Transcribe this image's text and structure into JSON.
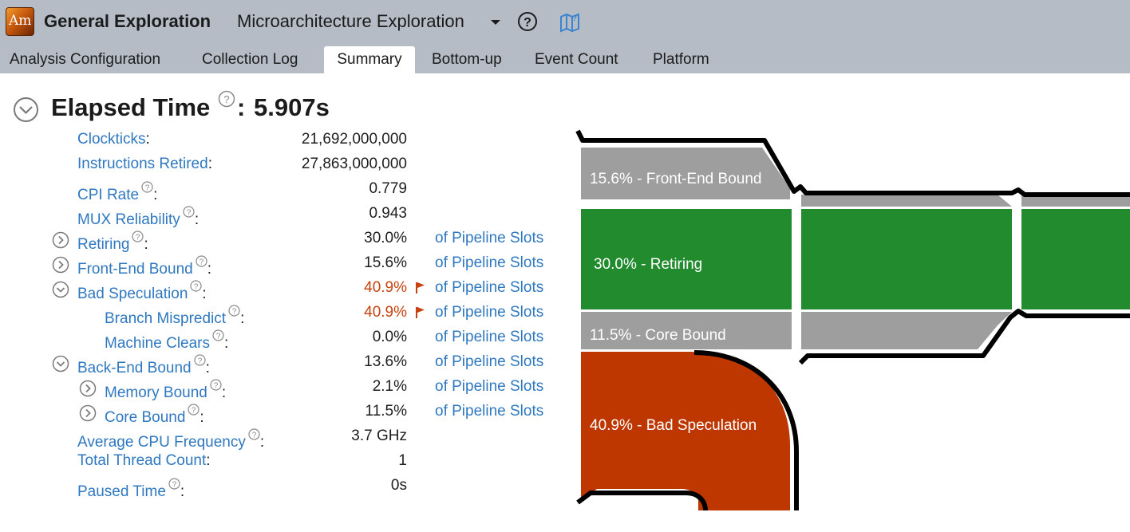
{
  "header": {
    "logo_text": "Am",
    "analysis_type": "General Exploration",
    "analysis_variant": "Microarchitecture Exploration",
    "icons": [
      "dropdown-arrow-icon",
      "help-icon",
      "map-icon"
    ]
  },
  "tabs": [
    {
      "label": "Analysis Configuration",
      "active": false
    },
    {
      "label": "Collection Log",
      "active": false
    },
    {
      "label": "Summary",
      "active": true
    },
    {
      "label": "Bottom-up",
      "active": false
    },
    {
      "label": "Event Count",
      "active": false
    },
    {
      "label": "Platform",
      "active": false
    }
  ],
  "summary": {
    "title": "Elapsed Time",
    "colon": ":",
    "value": "5.907s",
    "metrics": [
      {
        "label": "Clockticks",
        "value": "21,692,000,000",
        "help": false,
        "unit": "",
        "flag": false,
        "toggle": "none",
        "indent": 0
      },
      {
        "label": "Instructions Retired",
        "value": "27,863,000,000",
        "help": false,
        "unit": "",
        "flag": false,
        "toggle": "none",
        "indent": 0
      },
      {
        "label": "CPI Rate",
        "value": "0.779",
        "help": true,
        "unit": "",
        "flag": false,
        "toggle": "none",
        "indent": 0
      },
      {
        "label": "MUX Reliability",
        "value": "0.943",
        "help": true,
        "unit": "",
        "flag": false,
        "toggle": "none",
        "indent": 0
      },
      {
        "label": "Retiring",
        "value": "30.0%",
        "help": true,
        "unit": "of Pipeline Slots",
        "flag": false,
        "toggle": "collapsed",
        "indent": 0
      },
      {
        "label": "Front-End Bound",
        "value": "15.6%",
        "help": true,
        "unit": "of Pipeline Slots",
        "flag": false,
        "toggle": "collapsed",
        "indent": 0
      },
      {
        "label": "Bad Speculation",
        "value": "40.9%",
        "help": true,
        "unit": "of Pipeline Slots",
        "flag": true,
        "toggle": "expanded",
        "indent": 0
      },
      {
        "label": "Branch Mispredict",
        "value": "40.9%",
        "help": true,
        "unit": "of Pipeline Slots",
        "flag": true,
        "toggle": "none",
        "indent": 1
      },
      {
        "label": "Machine Clears",
        "value": "0.0%",
        "help": true,
        "unit": "of Pipeline Slots",
        "flag": false,
        "toggle": "none",
        "indent": 1
      },
      {
        "label": "Back-End Bound",
        "value": "13.6%",
        "help": true,
        "unit": "of Pipeline Slots",
        "flag": false,
        "toggle": "expanded",
        "indent": 0
      },
      {
        "label": "Memory Bound",
        "value": "2.1%",
        "help": true,
        "unit": "of Pipeline Slots",
        "flag": false,
        "toggle": "collapsed",
        "indent": 1
      },
      {
        "label": "Core Bound",
        "value": "11.5%",
        "help": true,
        "unit": "of Pipeline Slots",
        "flag": false,
        "toggle": "collapsed",
        "indent": 1
      },
      {
        "label": "Average CPU Frequency",
        "value": "3.7 GHz",
        "help": true,
        "unit": "",
        "flag": false,
        "toggle": "none",
        "indent": 0
      },
      {
        "label": "Total Thread Count",
        "value": "1",
        "help": false,
        "unit": "",
        "flag": false,
        "toggle": "none",
        "indent": 0
      },
      {
        "label": "Paused Time",
        "value": "0s",
        "help": true,
        "unit": "",
        "flag": false,
        "toggle": "none",
        "indent": 0
      }
    ]
  },
  "diagram": {
    "front_end_label": "15.6% - Front-End Bound",
    "retiring_label": "30.0% - Retiring",
    "core_bound_label": "11.5% - Core Bound",
    "bad_spec_label": "40.9% - Bad Speculation",
    "colors": {
      "gray": "#9e9e9e",
      "green": "#228b2e",
      "red": "#bf3700",
      "outline": "#000000"
    }
  },
  "colors": {
    "link": "#2f78c0",
    "bad_value": "#c8420f",
    "topbar": "#b6bcc6"
  }
}
